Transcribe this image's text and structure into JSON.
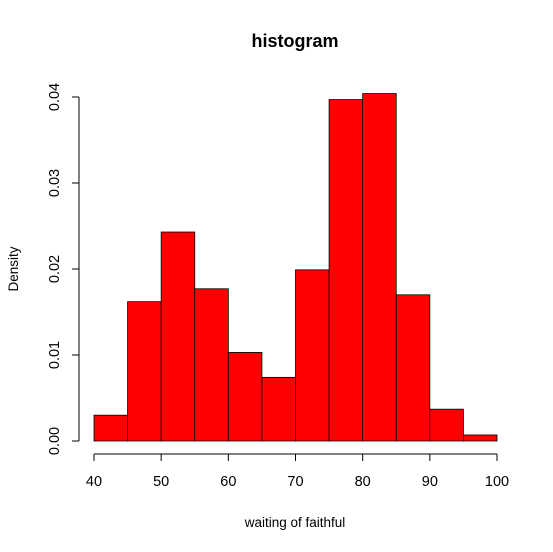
{
  "chart_data": {
    "type": "bar",
    "title": "histogram",
    "xlabel": "waiting of faithful",
    "ylabel": "Density",
    "xlim": [
      40,
      100
    ],
    "ylim": [
      0,
      0.04
    ],
    "bin_edges": [
      40,
      45,
      50,
      55,
      60,
      65,
      70,
      75,
      80,
      85,
      90,
      95,
      100
    ],
    "values": [
      0.003,
      0.0162,
      0.0243,
      0.0177,
      0.0103,
      0.0074,
      0.0199,
      0.0397,
      0.0404,
      0.017,
      0.0037,
      0.0007
    ],
    "x_ticks": [
      40,
      50,
      60,
      70,
      80,
      90,
      100
    ],
    "x_tick_labels": [
      "40",
      "50",
      "60",
      "70",
      "80",
      "90",
      "100"
    ],
    "y_ticks": [
      0,
      0.01,
      0.02,
      0.03,
      0.04
    ],
    "y_tick_labels": [
      "0.00",
      "0.01",
      "0.02",
      "0.03",
      "0.04"
    ],
    "grid": false,
    "legend": "none",
    "bar_color": "#ff0000",
    "edge_color": "#000000"
  }
}
